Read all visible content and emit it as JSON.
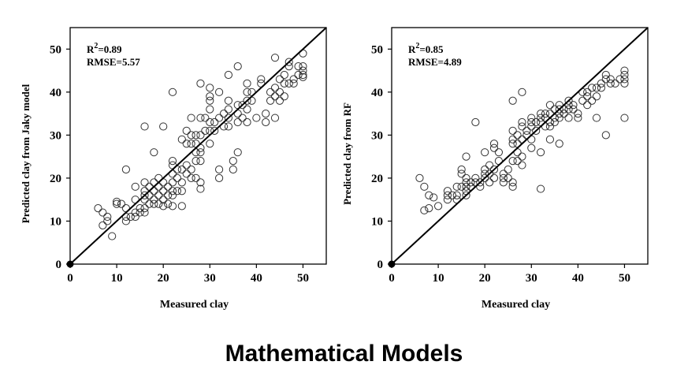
{
  "caption": "Mathematical Models",
  "chart_data": [
    {
      "type": "scatter",
      "title": "",
      "xlabel": "Measured clay",
      "ylabel": "Predicted clay from Jaky model",
      "xlim": [
        0,
        55
      ],
      "ylim": [
        0,
        55
      ],
      "xticks": [
        "0",
        "10",
        "20",
        "30",
        "40",
        "50"
      ],
      "yticks": [
        "0",
        "10",
        "20",
        "30",
        "40",
        "50"
      ],
      "annotation": {
        "r2_label": "R",
        "r2_sup": "2",
        "r2_value": "=0.89",
        "rmse": "RMSE=5.57"
      },
      "reference_line": [
        [
          0,
          0
        ],
        [
          55,
          55
        ]
      ],
      "origin_point": [
        0,
        0
      ],
      "grid": false,
      "points": [
        [
          6,
          13
        ],
        [
          7,
          12
        ],
        [
          7,
          9
        ],
        [
          8,
          11
        ],
        [
          8,
          10
        ],
        [
          9,
          6.5
        ],
        [
          10,
          14
        ],
        [
          10,
          14.5
        ],
        [
          11,
          14
        ],
        [
          12,
          22
        ],
        [
          12,
          13
        ],
        [
          12,
          11
        ],
        [
          12,
          10
        ],
        [
          13,
          11
        ],
        [
          14,
          18
        ],
        [
          14,
          15
        ],
        [
          14,
          12
        ],
        [
          14,
          11
        ],
        [
          15,
          13
        ],
        [
          15,
          12
        ],
        [
          16,
          32
        ],
        [
          16,
          19
        ],
        [
          16,
          17
        ],
        [
          16,
          16
        ],
        [
          16,
          15
        ],
        [
          16,
          13
        ],
        [
          16,
          12
        ],
        [
          17,
          18
        ],
        [
          17,
          16
        ],
        [
          17,
          14
        ],
        [
          18,
          26
        ],
        [
          18,
          19
        ],
        [
          18,
          17
        ],
        [
          18,
          15
        ],
        [
          18,
          14
        ],
        [
          19,
          20
        ],
        [
          19,
          18
        ],
        [
          19,
          16
        ],
        [
          19,
          14
        ],
        [
          20,
          32
        ],
        [
          20,
          19
        ],
        [
          20,
          17
        ],
        [
          20,
          15
        ],
        [
          20,
          13.5
        ],
        [
          21,
          18
        ],
        [
          21,
          16
        ],
        [
          21,
          14
        ],
        [
          22,
          40
        ],
        [
          22,
          24
        ],
        [
          22,
          23
        ],
        [
          22,
          21
        ],
        [
          22,
          19
        ],
        [
          22,
          17
        ],
        [
          22,
          16
        ],
        [
          22,
          13.5
        ],
        [
          23,
          22
        ],
        [
          23,
          20
        ],
        [
          23,
          17
        ],
        [
          24,
          29
        ],
        [
          24,
          22
        ],
        [
          24,
          19
        ],
        [
          24,
          17
        ],
        [
          24,
          13.5
        ],
        [
          25,
          31
        ],
        [
          25,
          28
        ],
        [
          25,
          23
        ],
        [
          25,
          21
        ],
        [
          26,
          34
        ],
        [
          26,
          30
        ],
        [
          26,
          28
        ],
        [
          26,
          22
        ],
        [
          26,
          20
        ],
        [
          27,
          30
        ],
        [
          27,
          28
        ],
        [
          27,
          26
        ],
        [
          27,
          24
        ],
        [
          27,
          20
        ],
        [
          28,
          42
        ],
        [
          28,
          34
        ],
        [
          28,
          30
        ],
        [
          28,
          27
        ],
        [
          28,
          26
        ],
        [
          28,
          24
        ],
        [
          28,
          19
        ],
        [
          28,
          17.5
        ],
        [
          29,
          34
        ],
        [
          29,
          31
        ],
        [
          30,
          41
        ],
        [
          30,
          39
        ],
        [
          30,
          38
        ],
        [
          30,
          36
        ],
        [
          30,
          33
        ],
        [
          30,
          31
        ],
        [
          30,
          28
        ],
        [
          31,
          33
        ],
        [
          31,
          31
        ],
        [
          32,
          40
        ],
        [
          32,
          34
        ],
        [
          32,
          22
        ],
        [
          32,
          20
        ],
        [
          33,
          35
        ],
        [
          33,
          32
        ],
        [
          34,
          44
        ],
        [
          34,
          38
        ],
        [
          34,
          36
        ],
        [
          34,
          34
        ],
        [
          34,
          32
        ],
        [
          35,
          24
        ],
        [
          35,
          22
        ],
        [
          36,
          46
        ],
        [
          36,
          37
        ],
        [
          36,
          35
        ],
        [
          36,
          33
        ],
        [
          36,
          26
        ],
        [
          37,
          37
        ],
        [
          37,
          34
        ],
        [
          38,
          42
        ],
        [
          38,
          40
        ],
        [
          38,
          38
        ],
        [
          38,
          36
        ],
        [
          38,
          33
        ],
        [
          39,
          40
        ],
        [
          39,
          38
        ],
        [
          40,
          34
        ],
        [
          41,
          43
        ],
        [
          41,
          42
        ],
        [
          42,
          35
        ],
        [
          42,
          33
        ],
        [
          43,
          40
        ],
        [
          43,
          38
        ],
        [
          44,
          48
        ],
        [
          44,
          41
        ],
        [
          44,
          39
        ],
        [
          44,
          34
        ],
        [
          45,
          43
        ],
        [
          45,
          40
        ],
        [
          45,
          38
        ],
        [
          46,
          44
        ],
        [
          46,
          42
        ],
        [
          46,
          39
        ],
        [
          47,
          47
        ],
        [
          47,
          46
        ],
        [
          47,
          42
        ],
        [
          48,
          43
        ],
        [
          48,
          42
        ],
        [
          49,
          44
        ],
        [
          50,
          49
        ],
        [
          50,
          46
        ],
        [
          50,
          45
        ],
        [
          50,
          44
        ],
        [
          50,
          43.5
        ],
        [
          49,
          46
        ]
      ]
    },
    {
      "type": "scatter",
      "title": "",
      "xlabel": "Measured clay",
      "ylabel": "Predicted clay from RF",
      "xlim": [
        0,
        55
      ],
      "ylim": [
        0,
        55
      ],
      "xticks": [
        "0",
        "10",
        "20",
        "30",
        "40",
        "50"
      ],
      "yticks": [
        "0",
        "10",
        "20",
        "30",
        "40",
        "50"
      ],
      "annotation": {
        "r2_label": "R",
        "r2_sup": "2",
        "r2_value": "=0.85",
        "rmse": "RMSE=4.89"
      },
      "reference_line": [
        [
          0,
          0
        ],
        [
          55,
          55
        ]
      ],
      "origin_point": [
        0,
        0
      ],
      "grid": false,
      "points": [
        [
          6,
          20
        ],
        [
          7,
          18
        ],
        [
          7,
          12.5
        ],
        [
          8,
          16
        ],
        [
          8,
          13
        ],
        [
          9,
          15.5
        ],
        [
          10,
          13.5
        ],
        [
          12,
          17
        ],
        [
          12,
          16
        ],
        [
          12,
          15
        ],
        [
          13,
          16
        ],
        [
          14,
          18
        ],
        [
          14,
          16
        ],
        [
          14,
          15
        ],
        [
          15,
          22
        ],
        [
          15,
          21
        ],
        [
          15,
          18
        ],
        [
          16,
          25
        ],
        [
          16,
          20
        ],
        [
          16,
          19
        ],
        [
          16,
          18
        ],
        [
          16,
          17
        ],
        [
          16,
          16
        ],
        [
          17,
          19
        ],
        [
          17,
          18
        ],
        [
          18,
          33
        ],
        [
          18,
          20
        ],
        [
          18,
          19
        ],
        [
          19,
          19
        ],
        [
          19,
          18
        ],
        [
          20,
          26
        ],
        [
          20,
          22
        ],
        [
          20,
          21
        ],
        [
          20,
          20
        ],
        [
          21,
          23
        ],
        [
          21,
          21
        ],
        [
          21,
          19
        ],
        [
          22,
          28
        ],
        [
          22,
          27
        ],
        [
          22,
          22
        ],
        [
          22,
          20
        ],
        [
          23,
          26
        ],
        [
          23,
          24
        ],
        [
          24,
          21
        ],
        [
          24,
          20
        ],
        [
          24,
          19
        ],
        [
          25,
          22
        ],
        [
          25,
          20
        ],
        [
          26,
          38
        ],
        [
          26,
          31
        ],
        [
          26,
          29
        ],
        [
          26,
          28
        ],
        [
          26,
          24
        ],
        [
          26,
          19
        ],
        [
          26,
          18
        ],
        [
          27,
          30
        ],
        [
          27,
          28
        ],
        [
          27,
          26
        ],
        [
          27,
          24
        ],
        [
          28,
          40
        ],
        [
          28,
          33
        ],
        [
          28,
          32
        ],
        [
          28,
          29
        ],
        [
          28,
          25
        ],
        [
          28,
          23
        ],
        [
          29,
          31
        ],
        [
          29,
          30
        ],
        [
          30,
          34
        ],
        [
          30,
          33
        ],
        [
          30,
          32
        ],
        [
          30,
          29
        ],
        [
          30,
          27
        ],
        [
          31,
          33
        ],
        [
          31,
          31
        ],
        [
          32,
          35
        ],
        [
          32,
          34
        ],
        [
          32,
          33
        ],
        [
          32,
          26
        ],
        [
          32,
          17.5
        ],
        [
          33,
          35
        ],
        [
          33,
          34
        ],
        [
          33,
          32
        ],
        [
          34,
          37
        ],
        [
          34,
          35
        ],
        [
          34,
          33
        ],
        [
          34,
          32
        ],
        [
          34,
          29
        ],
        [
          35,
          36
        ],
        [
          35,
          34
        ],
        [
          35,
          33
        ],
        [
          36,
          37
        ],
        [
          36,
          36
        ],
        [
          36,
          35
        ],
        [
          36,
          34
        ],
        [
          36,
          28
        ],
        [
          37,
          36
        ],
        [
          37,
          35
        ],
        [
          38,
          38
        ],
        [
          38,
          37
        ],
        [
          38,
          36
        ],
        [
          38,
          34
        ],
        [
          39,
          37
        ],
        [
          39,
          36
        ],
        [
          40,
          35
        ],
        [
          40,
          34
        ],
        [
          41,
          40
        ],
        [
          41,
          38
        ],
        [
          42,
          40
        ],
        [
          42,
          39
        ],
        [
          42,
          37
        ],
        [
          43,
          41
        ],
        [
          43,
          38
        ],
        [
          44,
          41
        ],
        [
          44,
          39
        ],
        [
          44,
          34
        ],
        [
          45,
          42
        ],
        [
          45,
          41
        ],
        [
          46,
          44
        ],
        [
          46,
          43
        ],
        [
          46,
          30
        ],
        [
          47,
          43
        ],
        [
          47,
          42
        ],
        [
          48,
          42
        ],
        [
          49,
          43
        ],
        [
          50,
          45
        ],
        [
          50,
          44
        ],
        [
          50,
          43
        ],
        [
          50,
          42
        ],
        [
          50,
          34
        ]
      ]
    }
  ]
}
